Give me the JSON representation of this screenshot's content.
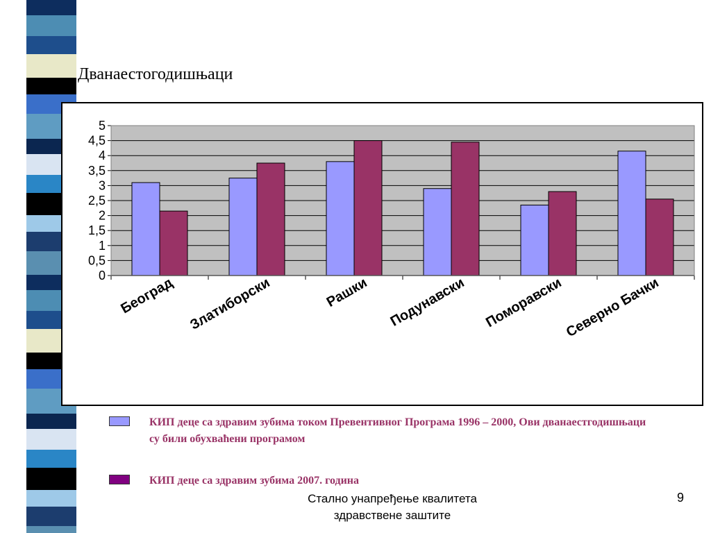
{
  "slide": {
    "title": "Дванаестогодишњаци",
    "footer_line1": "Стално унапређење квалитета",
    "footer_line2": "здравствене заштите",
    "page_number": "9"
  },
  "colors": {
    "series_1996_2000": "#9999ff",
    "series_2007": "#993366",
    "legend_swatch_2007": "#800080",
    "legend_text": "#993366",
    "plot_background": "#c0c0c0"
  },
  "legend": [
    {
      "series": "series_1996_2000",
      "text": "КИП деце са здравим зубима током Превентивног Програма 1996 – 2000, Ови дванаестгодишњаци су били обухваћени програмом"
    },
    {
      "series": "series_2007",
      "text": "КИП деце са здравим зубима 2007. година"
    }
  ],
  "chart_data": {
    "type": "bar",
    "categories": [
      "Београд",
      "Златиборски",
      "Рашки",
      "Подунавски",
      "Поморавски",
      "Северно Бачки"
    ],
    "series": [
      {
        "key": "series_1996_2000",
        "values": [
          3.1,
          3.25,
          3.8,
          2.9,
          2.35,
          4.15
        ]
      },
      {
        "key": "series_2007",
        "values": [
          2.15,
          3.75,
          4.5,
          4.45,
          2.8,
          2.55
        ]
      }
    ],
    "ylim": [
      0,
      5
    ],
    "yticks": [
      "0",
      "0,5",
      "1",
      "1,5",
      "2",
      "2,5",
      "3",
      "3,5",
      "4",
      "4,5",
      "5"
    ],
    "ytick_values": [
      0,
      0.5,
      1,
      1.5,
      2,
      2.5,
      3,
      3.5,
      4,
      4.5,
      5
    ],
    "grid": true,
    "title": "",
    "xlabel": "",
    "ylabel": ""
  }
}
